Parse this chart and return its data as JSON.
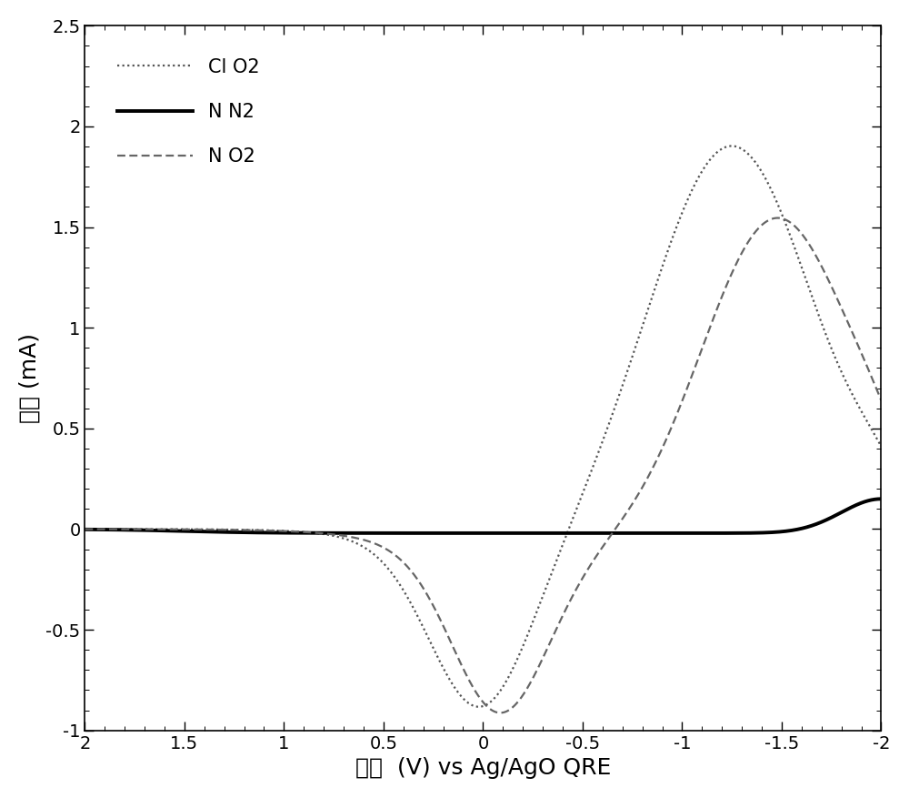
{
  "title": "",
  "xlabel": "电位  (V) vs Ag/AgO QRE",
  "ylabel": "电流 (mA)",
  "xlim": [
    2,
    -2
  ],
  "ylim": [
    -1.0,
    2.5
  ],
  "xticks": [
    2,
    1.5,
    1,
    0.5,
    0,
    -0.5,
    -1,
    -1.5,
    -2
  ],
  "yticks": [
    -1.0,
    -0.5,
    0.0,
    0.5,
    1.0,
    1.5,
    2.0,
    2.5
  ],
  "legend_labels": [
    "Cl O2",
    "N N2",
    "N O2"
  ],
  "line_colors": [
    "#555555",
    "#000000",
    "#666666"
  ],
  "background_color": "#ffffff",
  "font_color": "#000000",
  "axis_fontsize": 18,
  "tick_fontsize": 14,
  "legend_font_size": 15
}
